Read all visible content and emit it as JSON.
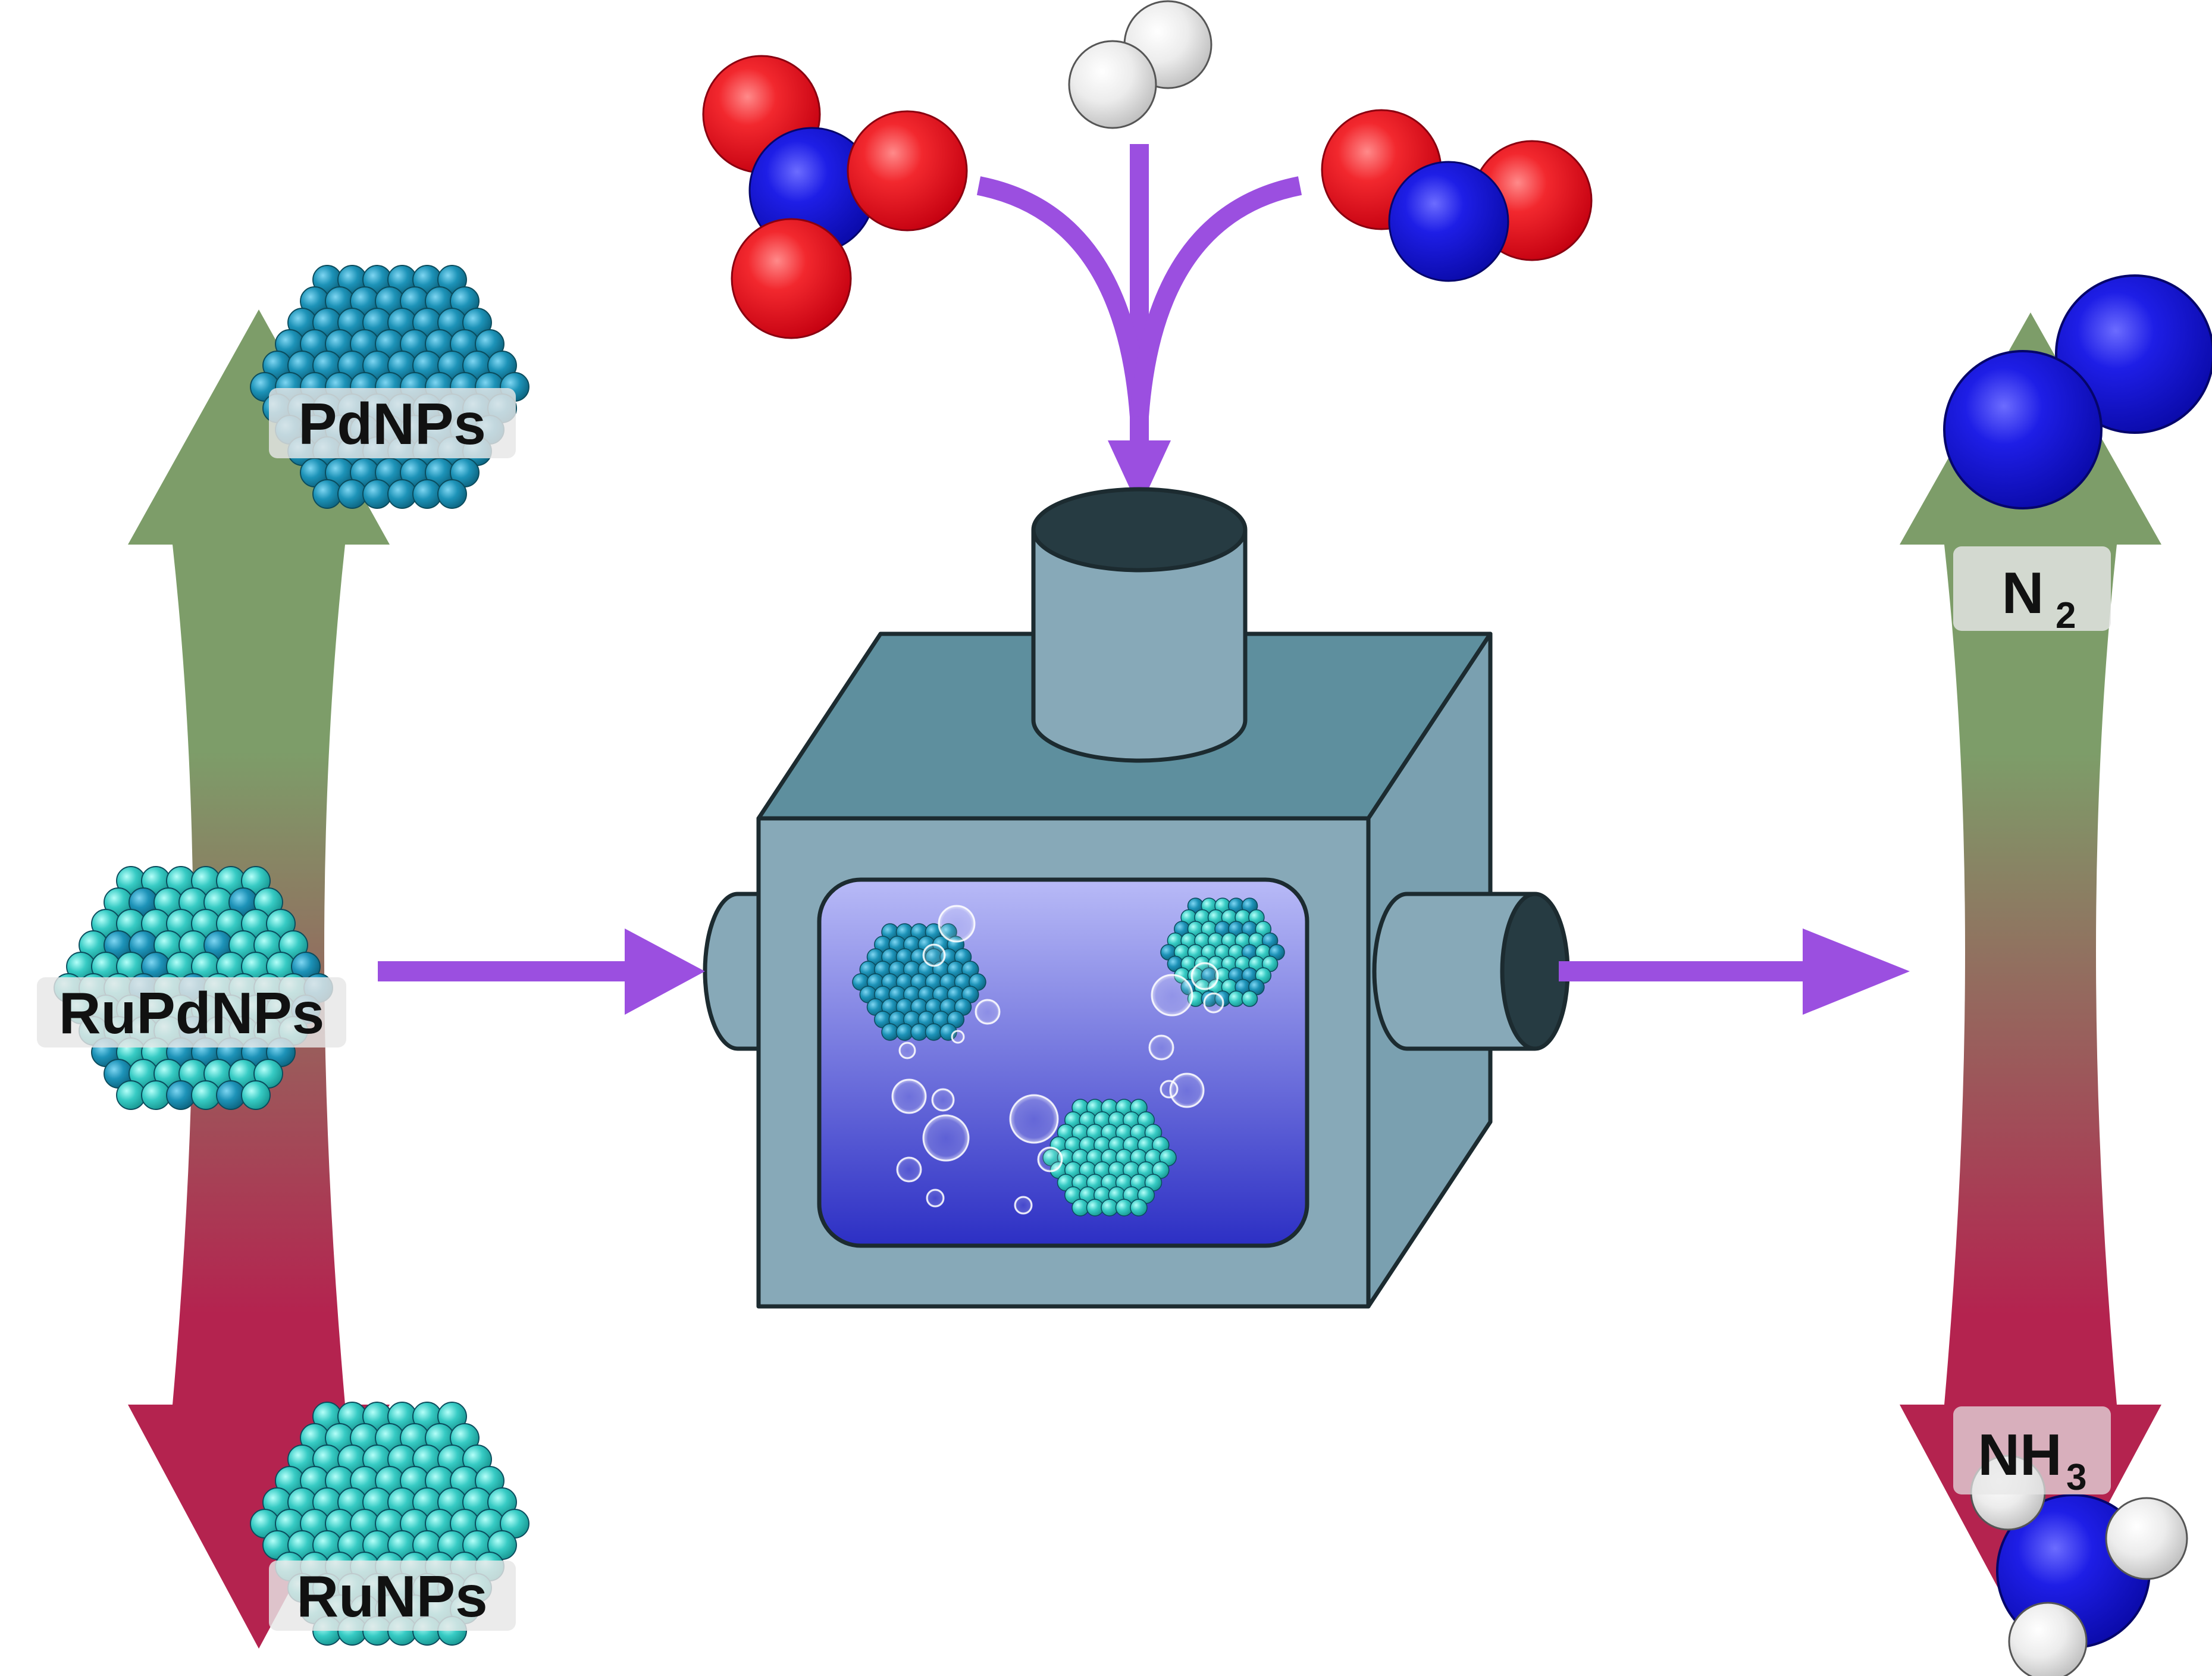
{
  "labels": {
    "pd": "PdNPs",
    "rupd": "RuPdNPs",
    "ru": "RuNPs",
    "n2_base": "N",
    "n2_sub": "2",
    "nh3_base": "NH",
    "nh3_sub": "3"
  },
  "colors": {
    "arrow_green": "#7d9d69",
    "arrow_red": "#b4234f",
    "flow_arrow": "#9b4fe0",
    "oxygen": "#e8202a",
    "nitrogen": "#1f1fe0",
    "hydrogen": "#e6e6e6",
    "reactor_front": "#87a9b8",
    "reactor_top": "#5e8f9e",
    "reactor_side": "#7aa0b0",
    "reactor_outline": "#1c2b30",
    "window_top": "#b8baf7",
    "window_bottom": "#2c2fc4",
    "pd_atom": "#1d8fb4",
    "ru_atom": "#35c9c2"
  }
}
